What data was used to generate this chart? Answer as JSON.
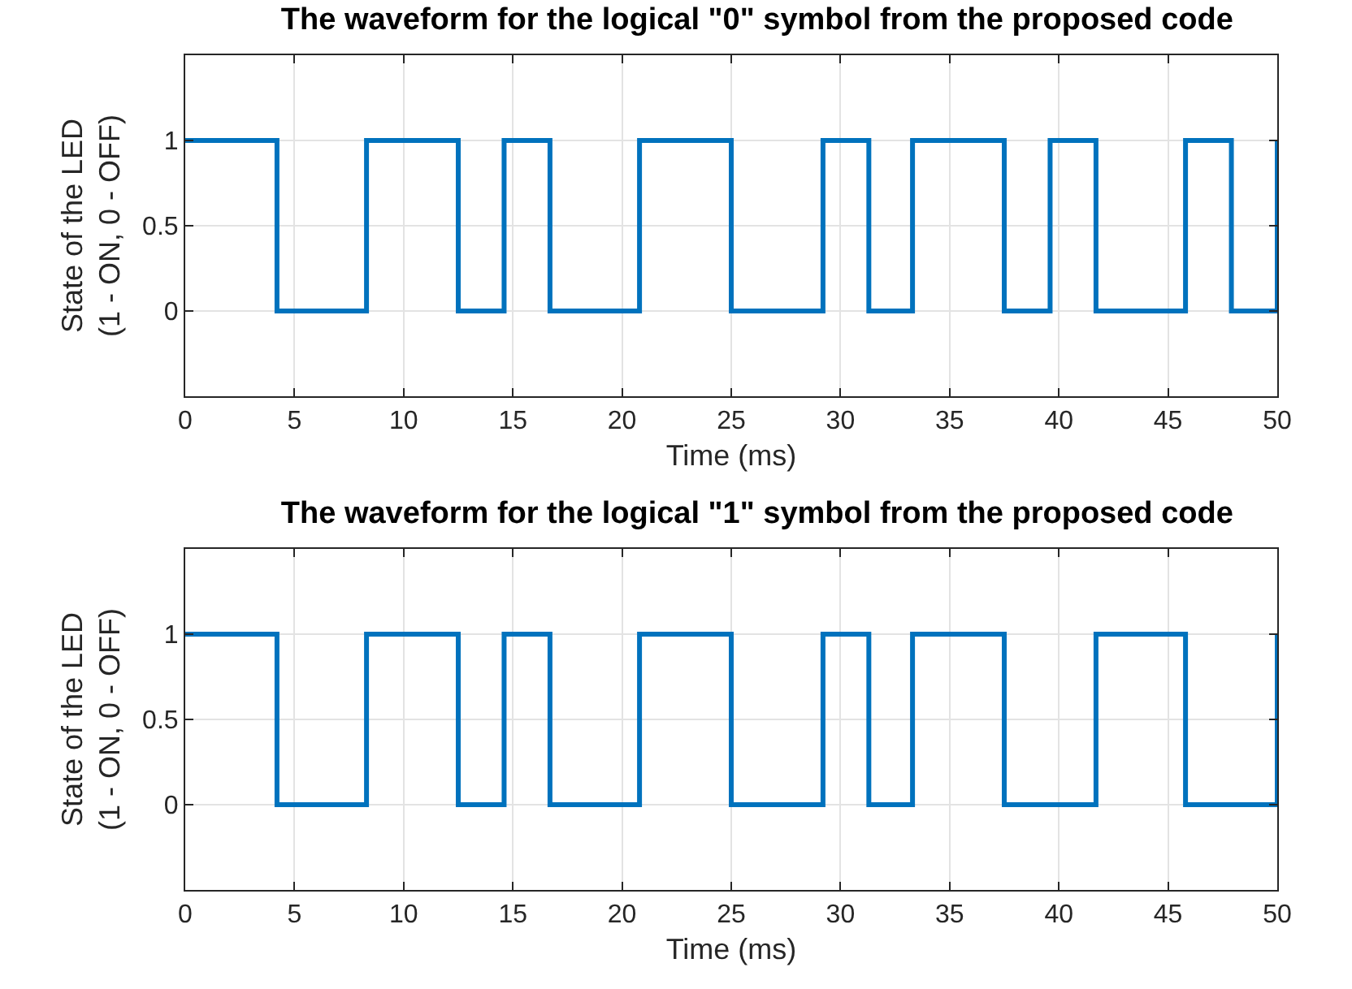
{
  "chart_data": [
    {
      "type": "step",
      "title": "The waveform for the logical \"0\" symbol from the proposed code",
      "xlabel": "Time (ms)",
      "ylabel": "State of the LED\n(1 - ON, 0 - OFF)",
      "x": [
        0,
        4.2,
        8.3,
        12.5,
        14.6,
        16.7,
        20.8,
        25,
        29.2,
        31.3,
        33.3,
        37.5,
        39.6,
        41.7,
        45.8,
        47.9,
        50
      ],
      "series": [
        {
          "color": "#0072bd",
          "values": [
            1,
            0,
            1,
            0,
            1,
            0,
            1,
            0,
            1,
            0,
            1,
            0,
            1,
            0,
            1,
            0,
            1
          ]
        }
      ],
      "xlim": [
        0,
        50
      ],
      "xticks": [
        0,
        5,
        10,
        15,
        20,
        25,
        30,
        35,
        40,
        45,
        50
      ],
      "ylim": [
        -0.5,
        1.5
      ],
      "yticks": [
        0,
        0.5,
        1
      ],
      "grid": true,
      "legend": false
    },
    {
      "type": "step",
      "title": "The waveform for the logical \"1\" symbol from the proposed code",
      "xlabel": "Time (ms)",
      "ylabel": "State of the LED\n(1 - ON, 0 - OFF)",
      "x": [
        0,
        4.2,
        8.3,
        12.5,
        14.6,
        16.7,
        20.8,
        25,
        29.2,
        31.3,
        33.3,
        37.5,
        41.7,
        45.8,
        50
      ],
      "series": [
        {
          "color": "#0072bd",
          "values": [
            1,
            0,
            1,
            0,
            1,
            0,
            1,
            0,
            1,
            0,
            1,
            0,
            1,
            0,
            1
          ]
        }
      ],
      "xlim": [
        0,
        50
      ],
      "xticks": [
        0,
        5,
        10,
        15,
        20,
        25,
        30,
        35,
        40,
        45,
        50
      ],
      "ylim": [
        -0.5,
        1.5
      ],
      "yticks": [
        0,
        0.5,
        1
      ],
      "grid": true,
      "legend": false
    }
  ]
}
